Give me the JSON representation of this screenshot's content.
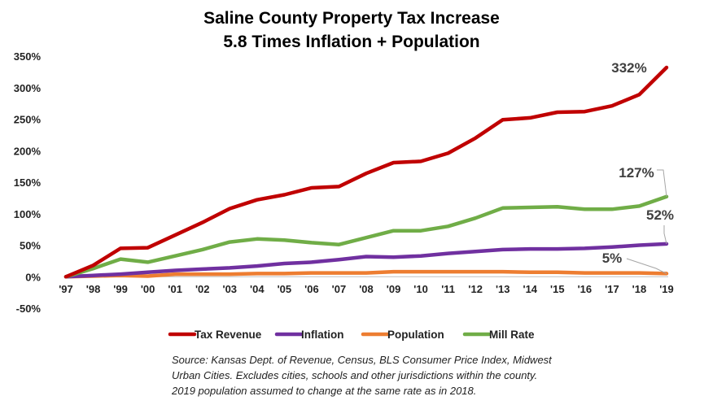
{
  "chart_data": {
    "type": "line",
    "title": "Saline County Property Tax Increase",
    "subtitle": "5.8 Times Inflation + Population",
    "xlabel": "",
    "ylabel": "",
    "categories": [
      "'97",
      "'98",
      "'99",
      "'00",
      "'01",
      "'02",
      "'03",
      "'04",
      "'05",
      "'06",
      "'07",
      "'08",
      "'09",
      "'10",
      "'11",
      "'12",
      "'13",
      "'14",
      "'15",
      "'16",
      "'17",
      "'18",
      "'19"
    ],
    "yticks": [
      "350%",
      "300%",
      "250%",
      "200%",
      "150%",
      "100%",
      "50%",
      "0%",
      "-50%"
    ],
    "ylim": [
      -50,
      350
    ],
    "grid": false,
    "legend_position": "bottom",
    "series": [
      {
        "name": "Tax Revenue",
        "color": "#c00000",
        "values": [
          0,
          18,
          45,
          46,
          66,
          86,
          108,
          122,
          130,
          141,
          143,
          164,
          181,
          183,
          196,
          220,
          249,
          252,
          261,
          262,
          271,
          289,
          332
        ]
      },
      {
        "name": "Inflation",
        "color": "#7030a0",
        "values": [
          0,
          2,
          4,
          7,
          10,
          12,
          14,
          17,
          21,
          23,
          27,
          32,
          31,
          33,
          37,
          40,
          43,
          44,
          44,
          45,
          47,
          50,
          52
        ]
      },
      {
        "name": "Population",
        "color": "#ed7d31",
        "values": [
          0,
          1,
          2,
          1,
          4,
          4,
          4,
          5,
          5,
          6,
          6,
          6,
          8,
          8,
          8,
          8,
          8,
          7,
          7,
          6,
          6,
          6,
          5
        ]
      },
      {
        "name": "Mill Rate",
        "color": "#70ad47",
        "values": [
          0,
          13,
          28,
          23,
          33,
          43,
          55,
          60,
          58,
          54,
          51,
          62,
          73,
          73,
          80,
          93,
          109,
          110,
          111,
          107,
          107,
          112,
          127
        ]
      }
    ],
    "annotations": [
      {
        "text": "332%",
        "series": "Tax Revenue",
        "at": "'19"
      },
      {
        "text": "127%",
        "series": "Mill Rate",
        "at": "'19"
      },
      {
        "text": "52%",
        "series": "Inflation",
        "at": "'19"
      },
      {
        "text": "5%",
        "series": "Population",
        "at": "'19"
      }
    ]
  },
  "source_note": {
    "line1": "Source: Kansas Dept. of Revenue, Census, BLS Consumer Price Index, Midwest",
    "line2": "Urban Cities.  Excludes cities, schools and other jurisdictions within the county.",
    "line3": "2019 population assumed to change at the same rate as in 2018."
  }
}
